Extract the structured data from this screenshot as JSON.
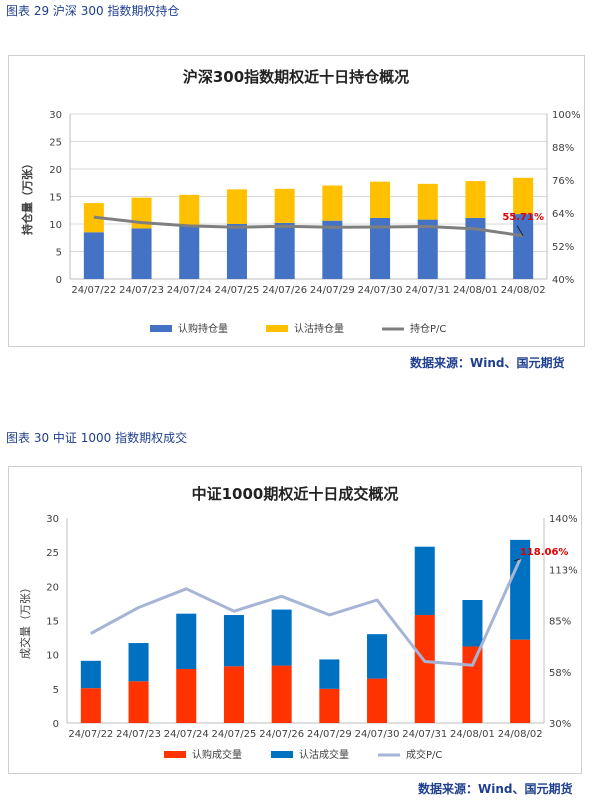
{
  "figures": [
    {
      "caption": "图表 29  沪深 300 指数期权持仓",
      "source": "数据来源：Wind、国元期货"
    },
    {
      "caption": "图表 30  中证 1000 指数期权成交",
      "source": "数据来源：Wind、国元期货"
    }
  ],
  "chart_data": [
    {
      "type": "bar",
      "stacked": true,
      "title": "沪深300指数期权近十日持仓概况",
      "ylabel": "持仓量（万张）",
      "ylim": [
        0,
        30
      ],
      "yticks": [
        0,
        5,
        10,
        15,
        20,
        25,
        30
      ],
      "y2lim": [
        40,
        100
      ],
      "y2ticks": [
        "40%",
        "52%",
        "64%",
        "76%",
        "88%",
        "100%"
      ],
      "categories": [
        "24/07/22",
        "24/07/23",
        "24/07/24",
        "24/07/25",
        "24/07/26",
        "24/07/29",
        "24/07/30",
        "24/07/31",
        "24/08/01",
        "24/08/02"
      ],
      "series": [
        {
          "name": "认购持仓量",
          "color": "#4472c4",
          "values": [
            8.5,
            9.2,
            9.7,
            10.0,
            10.2,
            10.6,
            11.1,
            10.8,
            11.1,
            11.8
          ]
        },
        {
          "name": "认沽持仓量",
          "color": "#ffc000",
          "values": [
            5.3,
            5.6,
            5.6,
            6.3,
            6.2,
            6.4,
            6.6,
            6.5,
            6.7,
            6.6
          ]
        },
        {
          "name": "持仓P/C",
          "color": "#7f7f7f",
          "axis": "right",
          "values": [
            62.5,
            60.5,
            59.3,
            58.8,
            59.2,
            58.8,
            58.9,
            59.1,
            58.2,
            55.71
          ]
        }
      ],
      "annotation": "55.71%",
      "grid": true,
      "legend": "bottom"
    },
    {
      "type": "bar",
      "stacked": true,
      "title": "中证1000期权近十日成交概况",
      "ylabel": "成交量（万张）",
      "ylim": [
        0,
        30
      ],
      "yticks": [
        0,
        5,
        10,
        15,
        20,
        25,
        30
      ],
      "y2lim": [
        30,
        140
      ],
      "y2ticks": [
        "30%",
        "58%",
        "85%",
        "113%",
        "140%"
      ],
      "categories": [
        "24/07/22",
        "24/07/23",
        "24/07/24",
        "24/07/25",
        "24/07/26",
        "24/07/29",
        "24/07/30",
        "24/07/31",
        "24/08/01",
        "24/08/02"
      ],
      "series": [
        {
          "name": "认购成交量",
          "color": "#ff3300",
          "values": [
            5.1,
            6.1,
            7.9,
            8.3,
            8.4,
            5.0,
            6.5,
            15.8,
            11.2,
            12.2
          ]
        },
        {
          "name": "认沽成交量",
          "color": "#0070c0",
          "values": [
            4.0,
            5.6,
            8.1,
            7.5,
            8.2,
            4.3,
            6.5,
            10.0,
            6.8,
            14.6
          ]
        },
        {
          "name": "成交P/C",
          "color": "#a6b4d6",
          "axis": "right",
          "values": [
            78,
            92,
            102,
            90,
            98,
            88,
            96,
            63,
            61,
            118.06
          ]
        }
      ],
      "annotation": "118.06%",
      "grid": false,
      "legend": "bottom"
    }
  ]
}
